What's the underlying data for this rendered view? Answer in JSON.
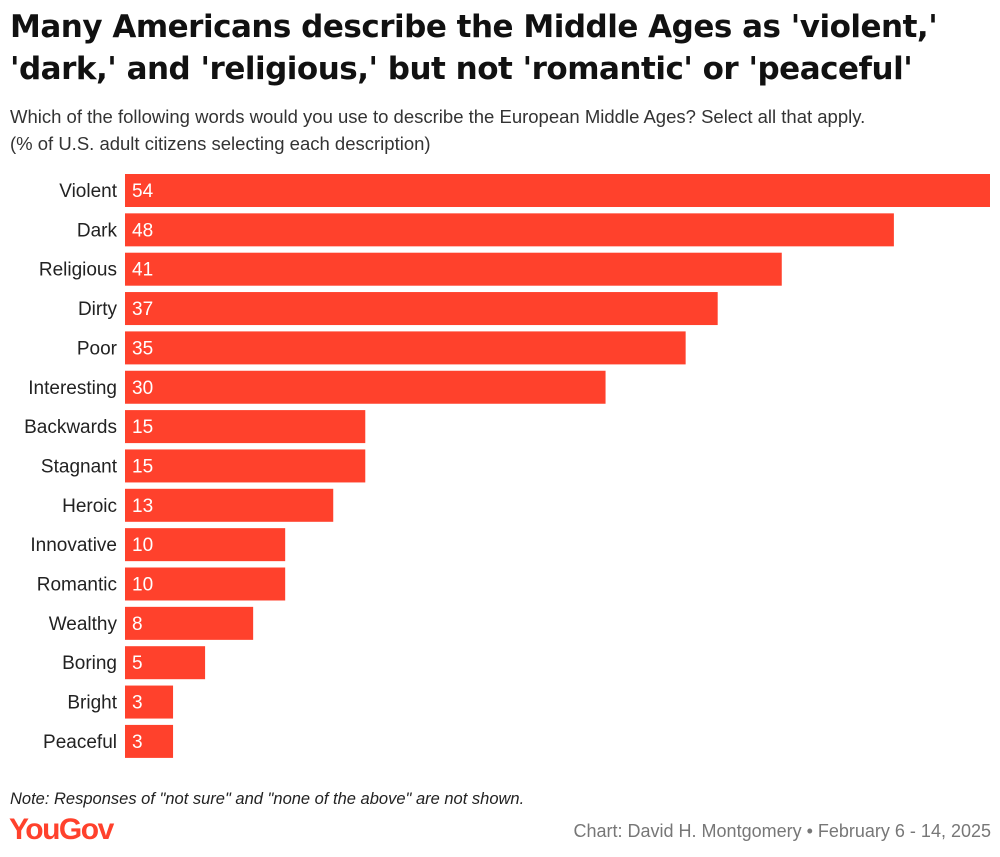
{
  "title": "Many Americans describe the Middle Ages as 'violent,' 'dark,' and 'religious,' but not 'romantic' or 'peaceful'",
  "subtitle_line1": "Which of the following words would you use to describe the European Middle Ages? Select all that apply.",
  "subtitle_line2": "(% of U.S. adult citizens selecting each description)",
  "note": "Note: Responses of \"not sure\" and \"none of the above\" are not shown.",
  "logo_text": "YouGov",
  "credit": "Chart: David H. Montgomery • February 6 - 14, 2025",
  "colors": {
    "bar": "#ff412c",
    "logo": "#ff412c",
    "bar_label": "#ffffff",
    "category_label": "#222222"
  },
  "chart_data": {
    "type": "bar",
    "orientation": "horizontal",
    "title": "Many Americans describe the Middle Ages as 'violent,' 'dark,' and 'religious,' but not 'romantic' or 'peaceful'",
    "xlabel": "",
    "ylabel": "",
    "xlim": [
      0,
      54
    ],
    "grid": false,
    "categories": [
      "Violent",
      "Dark",
      "Religious",
      "Dirty",
      "Poor",
      "Interesting",
      "Backwards",
      "Stagnant",
      "Heroic",
      "Innovative",
      "Romantic",
      "Wealthy",
      "Boring",
      "Bright",
      "Peaceful"
    ],
    "values": [
      54,
      48,
      41,
      37,
      35,
      30,
      15,
      15,
      13,
      10,
      10,
      8,
      5,
      3,
      3
    ]
  }
}
